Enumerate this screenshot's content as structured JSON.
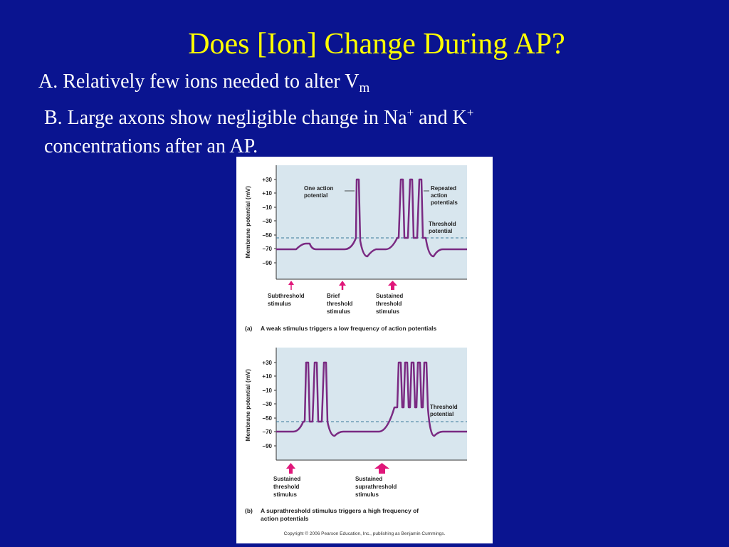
{
  "slide": {
    "title": "Does [Ion] Change During AP?",
    "bullet_a": {
      "text": "A. Relatively few ions needed to alter V",
      "subscript": "m"
    },
    "bullet_b": {
      "part1": "B. Large axons show negligible change in Na",
      "sup1": "+",
      "part2": " and K",
      "sup2": "+",
      "line2": "concentrations after an AP."
    }
  },
  "figure": {
    "y_axis_label": "Membrane potential (mV)",
    "y_ticks": [
      "+30",
      "+10",
      "−10",
      "−30",
      "−50",
      "−70",
      "−90"
    ],
    "panel_a": {
      "annotations": {
        "one_ap": [
          "One action",
          "potential"
        ],
        "repeated": [
          "Repeated",
          "action",
          "potentials"
        ],
        "threshold": [
          "Threshold",
          "potential"
        ]
      },
      "stimuli": {
        "subthreshold": [
          "Subthreshold",
          "stimulus"
        ],
        "brief": [
          "Brief",
          "threshold",
          "stimulus"
        ],
        "sustained": [
          "Sustained",
          "threshold",
          "stimulus"
        ]
      },
      "caption_letter": "(a)",
      "caption": "A weak stimulus triggers a low frequency of action potentials"
    },
    "panel_b": {
      "annotations": {
        "threshold": [
          "Threshold",
          "potential"
        ]
      },
      "stimuli": {
        "sustained_threshold": [
          "Sustained",
          "threshold",
          "stimulus"
        ],
        "suprathreshold": [
          "Sustained",
          "suprathreshold",
          "stimulus"
        ]
      },
      "caption_letter": "(b)",
      "caption": [
        "A suprathreshold stimulus triggers a high frequency of",
        "action potentials"
      ]
    },
    "copyright": "Copyright © 2006 Pearson Education, Inc., publishing as Benjamin Cummings.",
    "colors": {
      "trace": "#7a2a82",
      "arrow": "#e0177a",
      "plot_bg": "#d8e6ee",
      "threshold_line": "#3a7a9a"
    }
  }
}
